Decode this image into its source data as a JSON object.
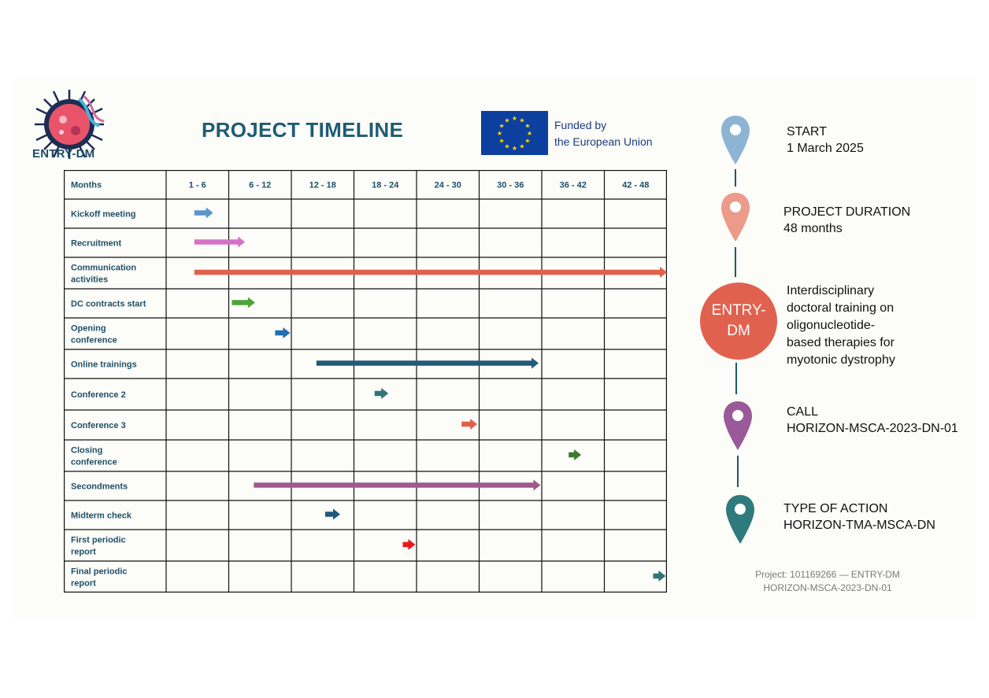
{
  "logo": {
    "text": "ENTRY-DM"
  },
  "title": "PROJECT TIMELINE",
  "eu": {
    "line1": "Funded by",
    "line2": "the European Union"
  },
  "table": {
    "header_label": "Months",
    "periods": [
      "1 - 6",
      "6 - 12",
      "12 - 18",
      "18 - 24",
      "24 - 30",
      "30 - 36",
      "36 - 42",
      "42 - 48"
    ],
    "rows": [
      {
        "lines": [
          "Kickoff meeting"
        ],
        "start": 0.45,
        "end": 0.75,
        "color": "#5b95cc"
      },
      {
        "lines": [
          "Recruitment"
        ],
        "start": 0.45,
        "end": 1.26,
        "color": "#d472c8"
      },
      {
        "lines": [
          "Communication",
          "activities"
        ],
        "start": 0.45,
        "end": 8.0,
        "color": "#e0604c"
      },
      {
        "lines": [
          "DC contracts start"
        ],
        "start": 1.05,
        "end": 1.42,
        "color": "#4ea33a"
      },
      {
        "lines": [
          "Opening",
          "conference"
        ],
        "start": 1.74,
        "end": 1.98,
        "color": "#1f6fb3"
      },
      {
        "lines": [
          "Online trainings"
        ],
        "start": 2.4,
        "end": 5.95,
        "color": "#1f5a78"
      },
      {
        "lines": [
          "Conference 2"
        ],
        "start": 3.33,
        "end": 3.55,
        "color": "#2f7478"
      },
      {
        "lines": [
          "Conference 3"
        ],
        "start": 4.72,
        "end": 4.97,
        "color": "#e0604c"
      },
      {
        "lines": [
          "Closing",
          "conference"
        ],
        "start": 6.43,
        "end": 6.63,
        "color": "#3b7a30"
      },
      {
        "lines": [
          "Secondments"
        ],
        "start": 1.4,
        "end": 5.98,
        "color": "#a0578e"
      },
      {
        "lines": [
          "Midterm check"
        ],
        "start": 2.54,
        "end": 2.78,
        "color": "#1f5a78"
      },
      {
        "lines": [
          "First periodic",
          "report"
        ],
        "start": 3.78,
        "end": 3.98,
        "color": "#e8191f"
      },
      {
        "lines": [
          "Final periodic",
          "report"
        ],
        "start": 7.78,
        "end": 7.98,
        "color": "#2f7478"
      }
    ]
  },
  "info": {
    "start": {
      "label": "START",
      "value": "1 March 2025",
      "color": "#8db4d2"
    },
    "duration": {
      "label": "PROJECT DURATION",
      "value": "48 months",
      "color": "#ec9a8a"
    },
    "center": {
      "text": "ENTRY-DM",
      "color": "#e0624e",
      "description": [
        "Interdisciplinary",
        "doctoral training on",
        "oligonucleotide-",
        "based therapies for",
        "myotonic dystrophy"
      ]
    },
    "call": {
      "label": "CALL",
      "value": "HORIZON-MSCA-2023-DN-01",
      "color": "#9a5a9a"
    },
    "action": {
      "label": "TYPE OF ACTION",
      "value": "HORIZON-TMA-MSCA-DN",
      "color": "#2e7a7c"
    }
  },
  "footer": {
    "line1": "Project: 101169266 — ENTRY-DM",
    "line2": "HORIZON-MSCA-2023-DN-01"
  }
}
